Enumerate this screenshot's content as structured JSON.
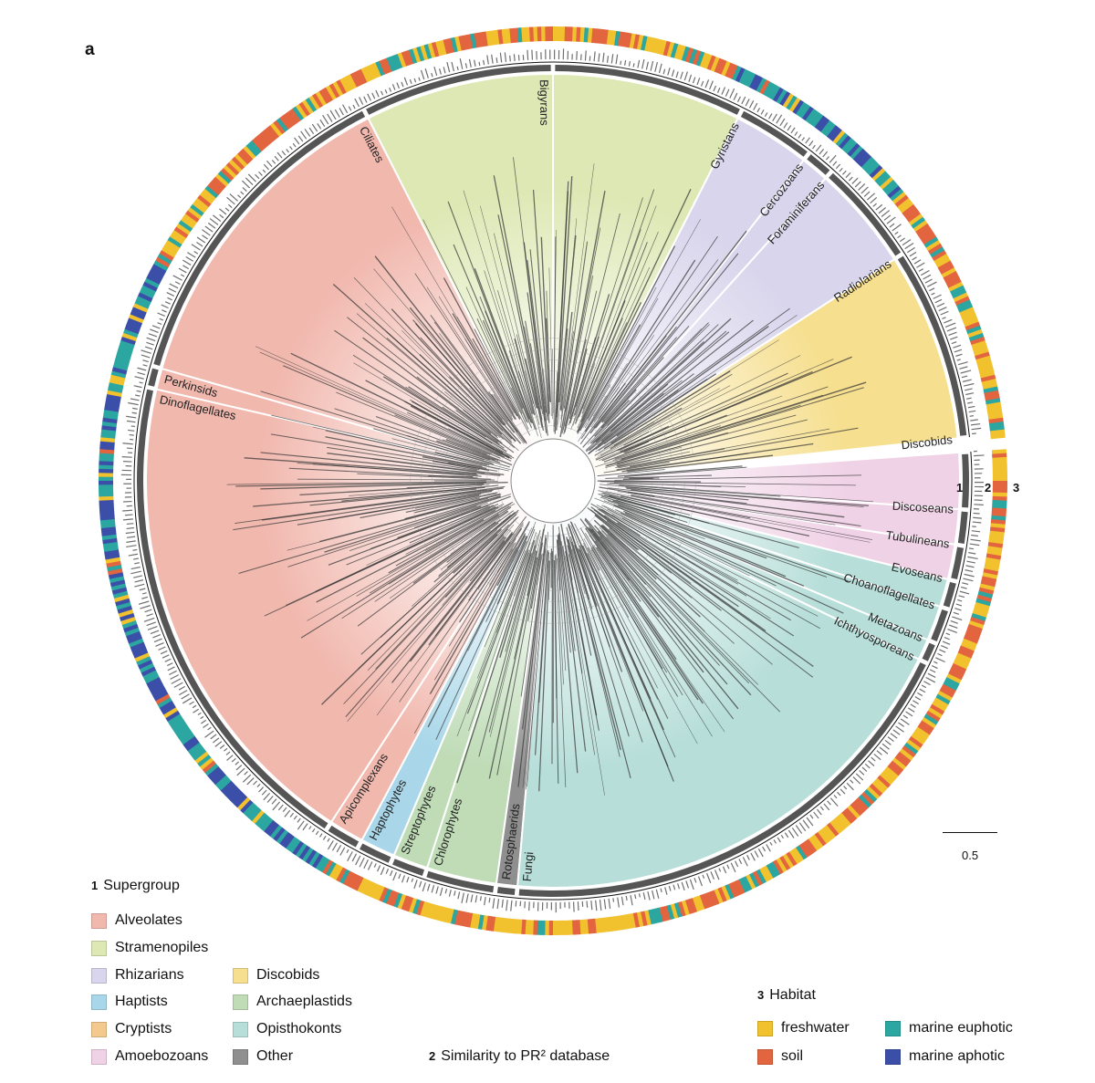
{
  "panel_label": "a",
  "ring_numbers": [
    "1",
    "2",
    "3"
  ],
  "scale_bar": {
    "label": "0.5"
  },
  "clades": [
    {
      "name": "Gyristans",
      "group": "stramenopiles",
      "start": -90,
      "end": -63
    },
    {
      "name": "Bigyrans",
      "group": "stramenopiles",
      "start": -117,
      "end": -90
    },
    {
      "name": "Ciliates",
      "group": "alveolates",
      "start": -164,
      "end": -117
    },
    {
      "name": "Perkinsids",
      "group": "alveolates",
      "start": -167,
      "end": -164
    },
    {
      "name": "Dinoflagellates",
      "group": "alveolates",
      "start": -237,
      "end": -167
    },
    {
      "name": "Apicomplexans",
      "group": "alveolates",
      "start": -242,
      "end": -237
    },
    {
      "name": "Haptophytes",
      "group": "haptists",
      "start": -247,
      "end": -242
    },
    {
      "name": "Streptophytes",
      "group": "archaeplastids",
      "start": -252,
      "end": -247
    },
    {
      "name": "Chlorophytes",
      "group": "archaeplastids",
      "start": -262,
      "end": -252
    },
    {
      "name": "Rotosphaerids",
      "group": "other",
      "start": -265,
      "end": -262
    },
    {
      "name": "Fungi",
      "group": "opisthokonts",
      "start": -334,
      "end": -265
    },
    {
      "name": "Ichthyosporeans",
      "group": "opisthokonts",
      "start": -337,
      "end": -334
    },
    {
      "name": "Metazoans",
      "group": "opisthokonts",
      "start": -342,
      "end": -337
    },
    {
      "name": "Choanoflagellates",
      "group": "opisthokonts",
      "start": -346,
      "end": -342
    },
    {
      "name": "Evoseans",
      "group": "amoebozoans",
      "start": -351,
      "end": -346
    },
    {
      "name": "Tubulineans",
      "group": "amoebozoans",
      "start": -356,
      "end": -351
    },
    {
      "name": "Discoseans",
      "group": "amoebozoans",
      "start": -364,
      "end": -356
    },
    {
      "name": "Discobids",
      "group": "discobids",
      "start": -33,
      "end": -6
    },
    {
      "name": "Radiolarians",
      "group": "rhizarians",
      "start": -48,
      "end": -33
    },
    {
      "name": "Foraminiferans",
      "group": "rhizarians",
      "start": -52,
      "end": -48
    },
    {
      "name": "Cercozoans",
      "group": "rhizarians",
      "start": -63,
      "end": -52
    }
  ],
  "legend_supergroup": {
    "number": "1",
    "title": "Supergroup",
    "items": [
      {
        "key": "alveolates",
        "label": "Alveolates",
        "color": "#f1b8ae"
      },
      {
        "key": "stramenopiles",
        "label": "Stramenopiles",
        "color": "#dde8b4"
      },
      {
        "key": "rhizarians",
        "label": "Rhizarians",
        "color": "#d9d5ec"
      },
      {
        "key": "haptists",
        "label": "Haptists",
        "color": "#a9d7e9"
      },
      {
        "key": "cryptists",
        "label": "Cryptists",
        "color": "#f3c98e"
      },
      {
        "key": "amoebozoans",
        "label": "Amoebozoans",
        "color": "#f0d2e6"
      },
      {
        "key": "discobids",
        "label": "Discobids",
        "color": "#f6df8f"
      },
      {
        "key": "archaeplastids",
        "label": "Archaeplastids",
        "color": "#bfdcb7"
      },
      {
        "key": "opisthokonts",
        "label": "Opisthokonts",
        "color": "#b7ded9"
      },
      {
        "key": "other",
        "label": "Other",
        "color": "#8f8f8f"
      }
    ]
  },
  "legend_similarity": {
    "number": "2",
    "title": "Similarity to PR² database"
  },
  "legend_habitat": {
    "number": "3",
    "title": "Habitat",
    "items": [
      {
        "key": "freshwater",
        "label": "freshwater",
        "color": "#f2c12e"
      },
      {
        "key": "soil",
        "label": "soil",
        "color": "#e2653f"
      },
      {
        "key": "marine_euphotic",
        "label": "marine euphotic",
        "color": "#2ba6a0"
      },
      {
        "key": "marine_aphotic",
        "label": "marine aphotic",
        "color": "#3b4fa8"
      }
    ]
  }
}
